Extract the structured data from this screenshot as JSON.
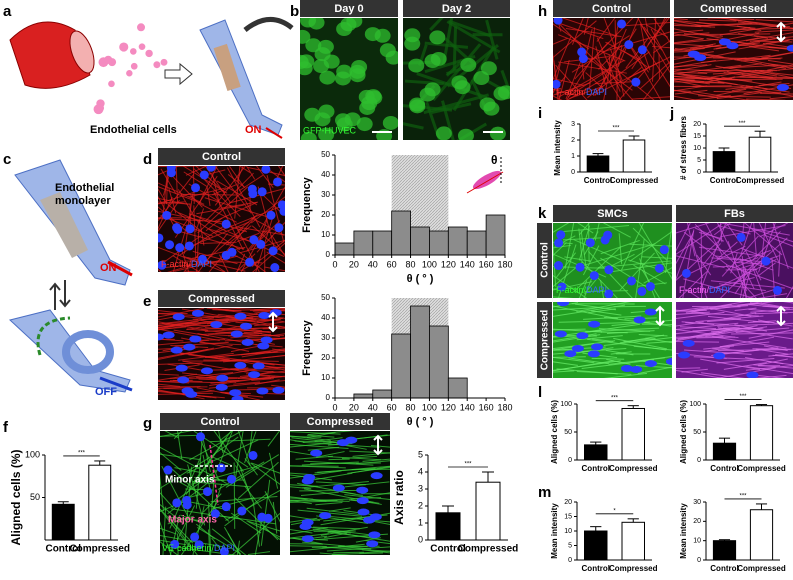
{
  "panels": {
    "labels": [
      "a",
      "b",
      "c",
      "d",
      "e",
      "f",
      "g",
      "h",
      "i",
      "j",
      "k",
      "l",
      "m"
    ]
  },
  "panel_a": {
    "caption": "Endothelial cells",
    "switch": "ON"
  },
  "panel_b": {
    "headers": [
      "Day 0",
      "Day 2"
    ],
    "stain": "GFP-HUVEC"
  },
  "panel_c": {
    "caption": [
      "Endothelial",
      "monolayer"
    ],
    "on": "ON",
    "off": "OFF"
  },
  "panel_d": {
    "header": "Control",
    "stain": [
      "F-actin/",
      "DAPI"
    ]
  },
  "panel_e": {
    "header": "Compressed"
  },
  "panel_g": {
    "headers": [
      "Control",
      "Compressed"
    ],
    "minor": "Minor axis",
    "major": "Major axis",
    "stain": [
      "VE-cadherin/",
      "DAPI"
    ]
  },
  "panel_h": {
    "headers": [
      "Control",
      "Compressed"
    ],
    "stain": [
      "F-actin/",
      "DAPI"
    ]
  },
  "panel_k": {
    "columns": [
      "SMCs",
      "FBs"
    ],
    "rows": [
      "Control",
      "Compressed"
    ],
    "stain_smc": [
      "F-actin/",
      "DAPI"
    ],
    "stain_fb": [
      "F-actin/",
      "DAPI"
    ]
  },
  "chart_data": [
    {
      "type": "histogram",
      "ylabel": "Frequency",
      "xlabel": "θ ( ° )",
      "inset_label": "θ",
      "bins": [
        0,
        20,
        40,
        60,
        80,
        100,
        120,
        140,
        160,
        180
      ],
      "values": [
        6,
        12,
        12,
        22,
        14,
        12,
        14,
        12,
        20
      ],
      "color": "#8c8c8c",
      "shaded_range": [
        60,
        120
      ],
      "xlim": [
        0,
        180
      ],
      "xticks": [
        0,
        20,
        40,
        60,
        80,
        100,
        120,
        140,
        160,
        180
      ],
      "ylim": [
        0,
        50
      ],
      "yticks": [
        0,
        10,
        20,
        30,
        40,
        50
      ]
    },
    {
      "type": "histogram",
      "ylabel": "Frequency",
      "xlabel": "θ ( ° )",
      "bins": [
        0,
        20,
        40,
        60,
        80,
        100,
        120,
        140,
        160,
        180
      ],
      "values": [
        0,
        2,
        4,
        32,
        46,
        36,
        10,
        0,
        0
      ],
      "color": "#8c8c8c",
      "shaded_range": [
        60,
        120
      ],
      "xlim": [
        0,
        180
      ],
      "xticks": [
        0,
        20,
        40,
        60,
        80,
        100,
        120,
        140,
        160,
        180
      ],
      "ylim": [
        0,
        50
      ],
      "yticks": [
        0,
        10,
        20,
        30,
        40,
        50
      ]
    },
    {
      "type": "bar",
      "ylabel": "Aligned cells (%)",
      "categories": [
        "Control",
        "Compressed"
      ],
      "values": [
        42,
        88
      ],
      "errors": [
        3,
        5
      ],
      "colors": [
        "#000000",
        "#ffffff"
      ],
      "significance": "***",
      "ylim": [
        0,
        100
      ],
      "yticks": [
        50,
        100
      ]
    },
    {
      "type": "bar",
      "ylabel": "Axis ratio",
      "categories": [
        "Control",
        "Compressed"
      ],
      "values": [
        1.6,
        3.4
      ],
      "errors": [
        0.4,
        0.6
      ],
      "colors": [
        "#000000",
        "#ffffff"
      ],
      "significance": "***",
      "ylim": [
        0,
        5
      ],
      "yticks": [
        0,
        1,
        2,
        3,
        4,
        5
      ]
    },
    {
      "type": "bar",
      "ylabel": "Mean intensity",
      "categories": [
        "Control",
        "Compressed"
      ],
      "values": [
        1.0,
        2.0
      ],
      "errors": [
        0.15,
        0.25
      ],
      "colors": [
        "#000000",
        "#ffffff"
      ],
      "significance": "***",
      "ylim": [
        0,
        3
      ],
      "yticks": [
        0,
        1,
        2,
        3
      ]
    },
    {
      "type": "bar",
      "ylabel": "# of stress fibers",
      "categories": [
        "Control",
        "Compressed"
      ],
      "values": [
        8.5,
        14.5
      ],
      "errors": [
        1.5,
        2.5
      ],
      "colors": [
        "#000000",
        "#ffffff"
      ],
      "significance": "***",
      "ylim": [
        0,
        20
      ],
      "yticks": [
        0,
        5,
        10,
        15,
        20
      ]
    },
    {
      "type": "bar",
      "ylabel": "Aligned cells (%)",
      "categories": [
        "Control",
        "Compressed"
      ],
      "values": [
        27,
        92
      ],
      "errors": [
        5,
        5
      ],
      "colors": [
        "#000000",
        "#ffffff"
      ],
      "significance": "***",
      "ylim": [
        0,
        100
      ],
      "yticks": [
        0,
        50,
        100
      ]
    },
    {
      "type": "bar",
      "ylabel": "Aligned cells (%)",
      "categories": [
        "Control",
        "Compressed"
      ],
      "values": [
        30,
        97
      ],
      "errors": [
        9,
        2
      ],
      "colors": [
        "#000000",
        "#ffffff"
      ],
      "significance": "***",
      "ylim": [
        0,
        100
      ],
      "yticks": [
        0,
        50,
        100
      ]
    },
    {
      "type": "bar",
      "ylabel": "Mean intensity",
      "categories": [
        "Control",
        "Compressed"
      ],
      "values": [
        10,
        13
      ],
      "errors": [
        1.5,
        1.2
      ],
      "colors": [
        "#000000",
        "#ffffff"
      ],
      "significance": "*",
      "ylim": [
        0,
        20
      ],
      "yticks": [
        0,
        5,
        10,
        15,
        20
      ]
    },
    {
      "type": "bar",
      "ylabel": "Mean intensity",
      "categories": [
        "Control",
        "Compressed"
      ],
      "values": [
        10,
        26
      ],
      "errors": [
        0.5,
        3
      ],
      "colors": [
        "#000000",
        "#ffffff"
      ],
      "significance": "***",
      "ylim": [
        0,
        30
      ],
      "yticks": [
        0,
        10,
        20,
        30
      ]
    }
  ]
}
